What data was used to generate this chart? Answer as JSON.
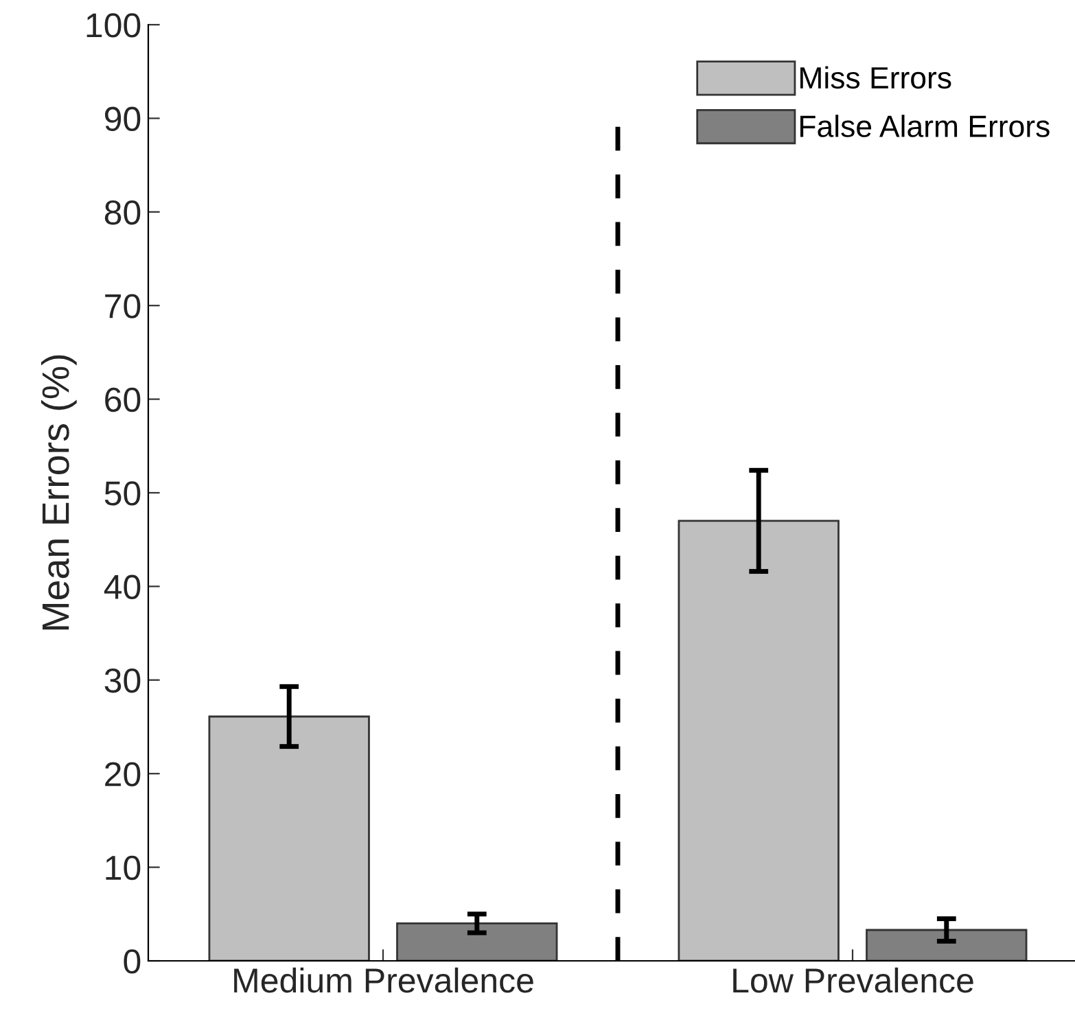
{
  "chart_data": {
    "type": "bar",
    "ylabel": "Mean Errors (%)",
    "categories": [
      "Medium Prevalence",
      "Low Prevalence"
    ],
    "series": [
      {
        "name": "Miss Errors",
        "color": "#bfbfbf",
        "values": [
          26.1,
          47.0
        ],
        "errors": [
          3.2,
          5.4
        ]
      },
      {
        "name": "False Alarm Errors",
        "color": "#808080",
        "values": [
          4.0,
          3.3
        ],
        "errors": [
          1.0,
          1.2
        ]
      }
    ],
    "ylim": [
      0,
      100
    ],
    "yticks": [
      0,
      10,
      20,
      30,
      40,
      50,
      60,
      70,
      80,
      90,
      100
    ],
    "grid": false,
    "legend": "top right"
  }
}
